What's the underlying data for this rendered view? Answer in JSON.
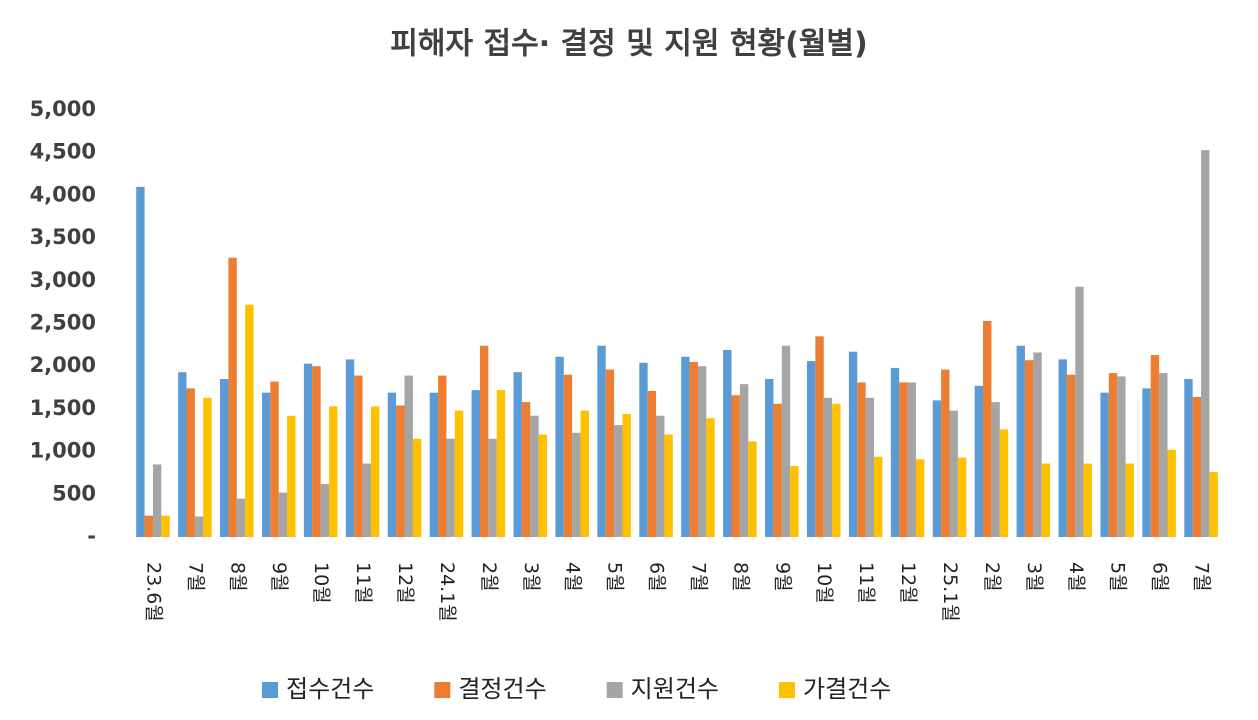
{
  "chart_data": {
    "type": "bar",
    "title": "피해자 접수· 결정 및 지원 현황(월별)",
    "categories": [
      "23.6월",
      "7월",
      "8월",
      "9월",
      "10월",
      "11월",
      "12월",
      "24.1월",
      "2월",
      "3월",
      "4월",
      "5월",
      "6월",
      "7월",
      "8월",
      "9월",
      "10월",
      "11월",
      "12월",
      "25.1월",
      "2월",
      "3월",
      "4월",
      "5월",
      "6월",
      "7월"
    ],
    "series": [
      {
        "name": "접수건수",
        "color": "#5b9bd5",
        "values": [
          4100,
          1930,
          1850,
          1690,
          2030,
          2080,
          1690,
          1690,
          1720,
          1930,
          2110,
          2240,
          2040,
          2110,
          2190,
          1850,
          2060,
          2170,
          1980,
          1600,
          1770,
          2240,
          2080,
          1690,
          1740,
          1850
        ]
      },
      {
        "name": "결정건수",
        "color": "#ed7d31",
        "values": [
          250,
          1740,
          3270,
          1820,
          2000,
          1890,
          1540,
          1890,
          2240,
          1580,
          1900,
          1960,
          1710,
          2050,
          1660,
          1560,
          2350,
          1810,
          1810,
          1960,
          2530,
          2070,
          1900,
          1920,
          2130,
          1640
        ]
      },
      {
        "name": "지원건수",
        "color": "#a5a5a5",
        "values": [
          850,
          240,
          450,
          520,
          620,
          860,
          1890,
          1150,
          1150,
          1420,
          1220,
          1310,
          1420,
          2000,
          1790,
          2240,
          1630,
          1630,
          1810,
          1480,
          1580,
          2160,
          2930,
          1880,
          1920,
          4530
        ]
      },
      {
        "name": "가결건수",
        "color": "#ffc000",
        "values": [
          250,
          1630,
          2720,
          1420,
          1530,
          1530,
          1150,
          1480,
          1720,
          1200,
          1480,
          1440,
          1200,
          1390,
          1120,
          830,
          1560,
          940,
          910,
          930,
          1260,
          860,
          860,
          860,
          1020,
          760
        ]
      }
    ],
    "ylim": [
      0,
      5000
    ],
    "yticks": [
      {
        "value": 0,
        "label": "-"
      },
      500,
      {
        "value": 1000,
        "label": "1,000"
      },
      {
        "value": 1500,
        "label": "1,500"
      },
      {
        "value": 2000,
        "label": "2,000"
      },
      {
        "value": 2500,
        "label": "2,500"
      },
      {
        "value": 3000,
        "label": "3,000"
      },
      {
        "value": 3500,
        "label": "3,500"
      },
      {
        "value": 4000,
        "label": "4,000"
      },
      {
        "value": 4500,
        "label": "4,500"
      },
      {
        "value": 5000,
        "label": "5,000"
      }
    ],
    "grid": false,
    "legend": "bottom"
  }
}
